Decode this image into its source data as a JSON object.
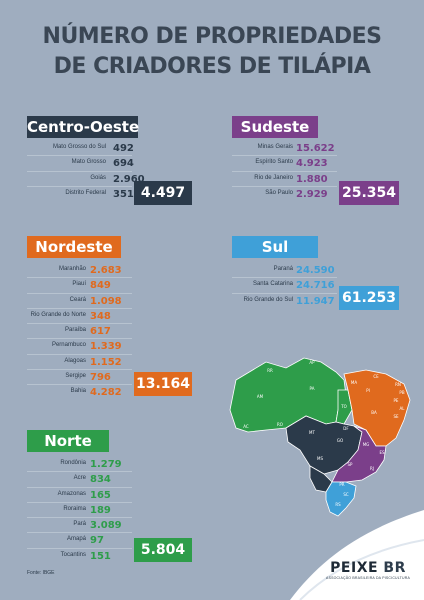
{
  "title": {
    "line1": "NÚMERO DE PROPRIEDADES",
    "line2": "DE CRIADORES DE TILÁPIA"
  },
  "colors": {
    "centro_oeste": "#2b3a4a",
    "sudeste": "#7b3f8a",
    "nordeste": "#e06a1e",
    "sul": "#3fa0d8",
    "norte": "#2e9d4a"
  },
  "centro_oeste": {
    "name": "Centro-Oeste",
    "rows": [
      {
        "state": "Mato Grosso do Sul",
        "value": "492"
      },
      {
        "state": "Mato Grosso",
        "value": "694"
      },
      {
        "state": "Goiás",
        "value": "2.960"
      },
      {
        "state": "Distrito Federal",
        "value": "351"
      }
    ],
    "total": "4.497"
  },
  "sudeste": {
    "name": "Sudeste",
    "rows": [
      {
        "state": "Minas Gerais",
        "value": "15.622"
      },
      {
        "state": "Espírito Santo",
        "value": "4.923"
      },
      {
        "state": "Rio de Janeiro",
        "value": "1.880"
      },
      {
        "state": "São Paulo",
        "value": "2.929"
      }
    ],
    "total": "25.354"
  },
  "nordeste": {
    "name": "Nordeste",
    "rows": [
      {
        "state": "Maranhão",
        "value": "2.683"
      },
      {
        "state": "Piauí",
        "value": "849"
      },
      {
        "state": "Ceará",
        "value": "1.098"
      },
      {
        "state": "Rio Grande do Norte",
        "value": "348"
      },
      {
        "state": "Paraíba",
        "value": "617"
      },
      {
        "state": "Pernambuco",
        "value": "1.339"
      },
      {
        "state": "Alagoas",
        "value": "1.152"
      },
      {
        "state": "Sergipe",
        "value": "796"
      },
      {
        "state": "Bahia",
        "value": "4.282"
      }
    ],
    "total": "13.164"
  },
  "sul": {
    "name": "Sul",
    "rows": [
      {
        "state": "Paraná",
        "value": "24.590"
      },
      {
        "state": "Santa Catarina",
        "value": "24.716"
      },
      {
        "state": "Rio Grande do Sul",
        "value": "11.947"
      }
    ],
    "total": "61.253"
  },
  "norte": {
    "name": "Norte",
    "rows": [
      {
        "state": "Rondônia",
        "value": "1.279"
      },
      {
        "state": "Acre",
        "value": "834"
      },
      {
        "state": "Amazonas",
        "value": "165"
      },
      {
        "state": "Roraima",
        "value": "189"
      },
      {
        "state": "Pará",
        "value": "3.089"
      },
      {
        "state": "Amapá",
        "value": "97"
      },
      {
        "state": "Tocantins",
        "value": "151"
      }
    ],
    "total": "5.804"
  },
  "map_labels": [
    "RR",
    "AP",
    "AM",
    "PA",
    "MA",
    "CE",
    "RN",
    "PB",
    "PI",
    "PE",
    "AL",
    "SE",
    "TO",
    "BA",
    "AC",
    "RO",
    "MT",
    "DF",
    "GO",
    "MG",
    "ES",
    "MS",
    "SP",
    "RJ",
    "PR",
    "SC",
    "RS"
  ],
  "source": "Fonte: IBGE",
  "logo": {
    "main": "PEIXE",
    "accent": "BR",
    "sub": "ASSOCIAÇÃO BRASILEIRA DA PISCICULTURA"
  }
}
